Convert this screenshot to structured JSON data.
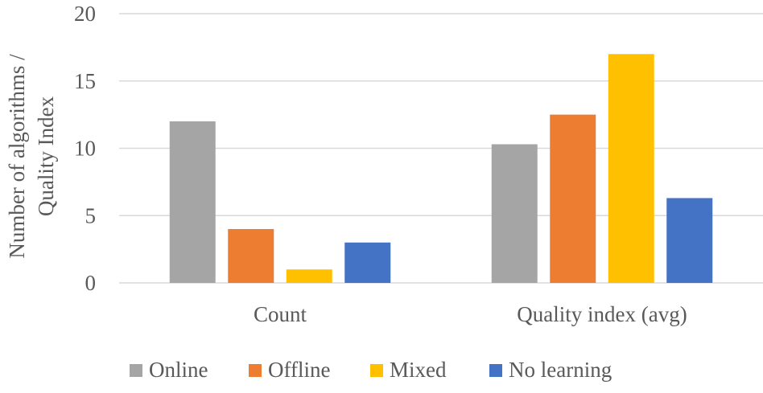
{
  "chart_data": {
    "type": "bar",
    "categories": [
      "Count",
      "Quality index (avg)"
    ],
    "series": [
      {
        "name": "Online",
        "values": [
          12,
          10.3
        ],
        "color": "#A5A5A5"
      },
      {
        "name": "Offline",
        "values": [
          4,
          12.5
        ],
        "color": "#ED7D31"
      },
      {
        "name": "Mixed",
        "values": [
          1,
          17
        ],
        "color": "#FFC000"
      },
      {
        "name": "No learning",
        "values": [
          3,
          6.3
        ],
        "color": "#4472C4"
      }
    ],
    "ylabel_lines": [
      "Number of algorithms /",
      "Quality Index"
    ],
    "ylim": [
      0,
      20
    ],
    "yticks": [
      "0",
      "5",
      "10",
      "15",
      "20"
    ],
    "grid": true,
    "legend_position": "bottom"
  }
}
